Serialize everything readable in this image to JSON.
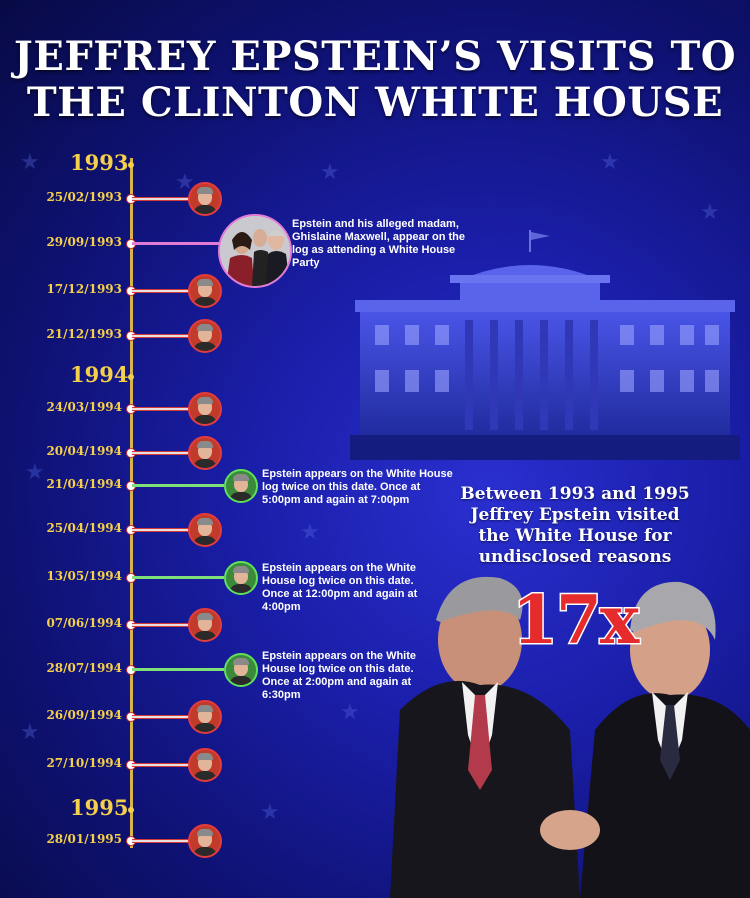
{
  "title": {
    "line1": "JEFFREY EPSTEIN’S VISITS TO",
    "line2": "THE CLINTON WHITE HOUSE"
  },
  "years": [
    "1993",
    "1994",
    "1995"
  ],
  "visits": [
    {
      "date": "25/02/1993",
      "type": "single"
    },
    {
      "date": "29/09/1993",
      "type": "party",
      "note": "Epstein and his alleged madam, Ghislaine Maxwell, appear on the log as attending a White House Party"
    },
    {
      "date": "17/12/1993",
      "type": "single"
    },
    {
      "date": "21/12/1993",
      "type": "single"
    },
    {
      "date": "24/03/1994",
      "type": "single"
    },
    {
      "date": "20/04/1994",
      "type": "single"
    },
    {
      "date": "21/04/1994",
      "type": "double",
      "note": "Epstein appears on the White House log twice on this date. Once at 5:00pm and again at 7:00pm"
    },
    {
      "date": "25/04/1994",
      "type": "single"
    },
    {
      "date": "13/05/1994",
      "type": "double",
      "note": "Epstein appears on the White House log twice on this date. Once at 12:00pm and again at 4:00pm"
    },
    {
      "date": "07/06/1994",
      "type": "single"
    },
    {
      "date": "28/07/1994",
      "type": "double",
      "note": "Epstein appears on the White House log twice on this date. Once at 2:00pm and again at 6:30pm"
    },
    {
      "date": "26/09/1994",
      "type": "single"
    },
    {
      "date": "27/10/1994",
      "type": "single"
    },
    {
      "date": "28/01/1995",
      "type": "single"
    }
  ],
  "summary": {
    "text": "Between 1993 and 1995 Jeffrey Epstein visited the White House for undisclosed reasons",
    "lines": [
      "Between 1993 and 1995",
      "Jeffrey Epstein visited",
      "the White House for",
      "undisclosed reasons"
    ],
    "count": "17x"
  },
  "colors": {
    "background": "#1a1ea8",
    "year_text": "#f5d04a",
    "single_visit": "#e23c3c",
    "double_visit": "#5fe05a",
    "party_visit": "#e37bd6",
    "count_text": "#e52b2b"
  }
}
